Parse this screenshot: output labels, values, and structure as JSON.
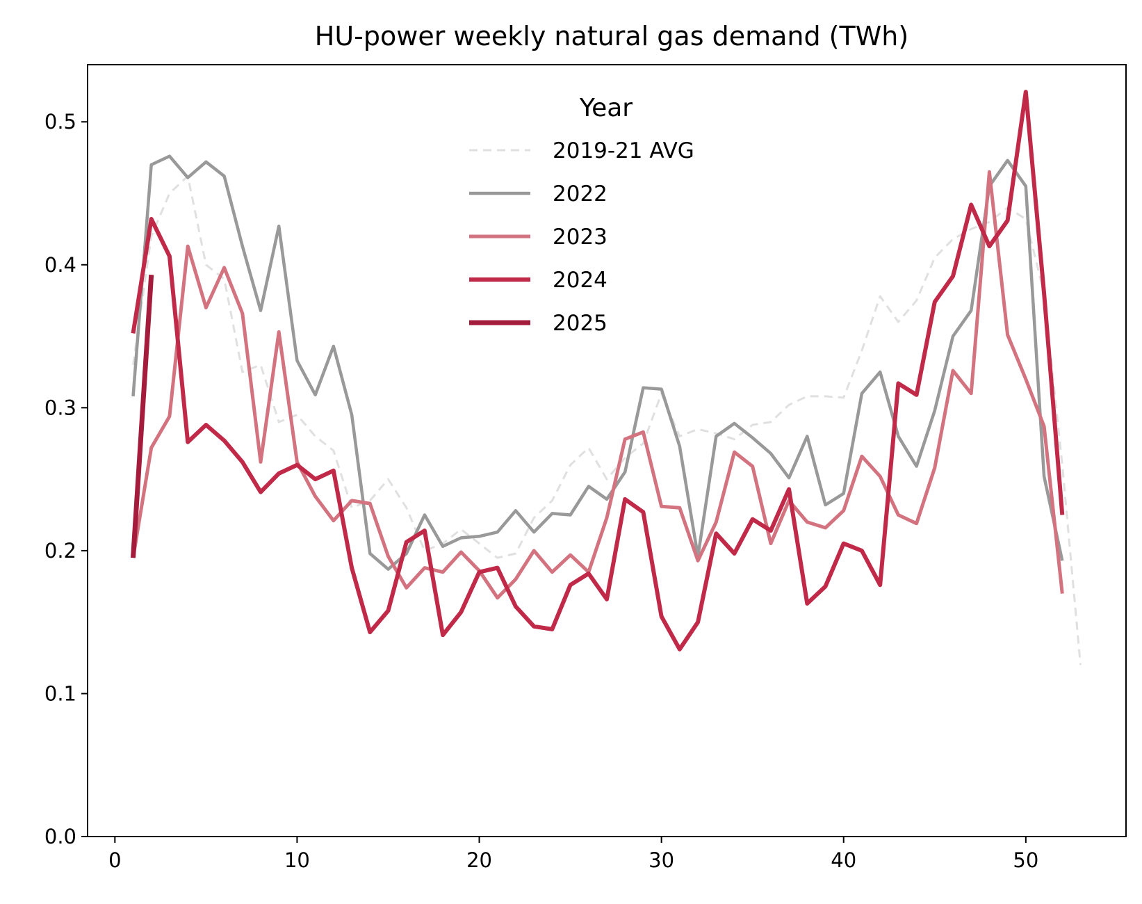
{
  "chart_data": {
    "type": "line",
    "title": "HU-power weekly natural gas demand (TWh)",
    "xlabel": "",
    "ylabel": "",
    "xlim": [
      -1.5,
      55.5
    ],
    "ylim": [
      0.0,
      0.54
    ],
    "x_ticks": [
      0,
      10,
      20,
      30,
      40,
      50
    ],
    "y_ticks": [
      0.0,
      0.1,
      0.2,
      0.3,
      0.4,
      0.5
    ],
    "x_tick_labels": [
      "0",
      "10",
      "20",
      "30",
      "40",
      "50"
    ],
    "y_tick_labels": [
      "0.0",
      "0.1",
      "0.2",
      "0.3",
      "0.4",
      "0.5"
    ],
    "grid": false,
    "legend": {
      "title": "Year",
      "position": "top-center"
    },
    "series": [
      {
        "name": "2019-21 AVG",
        "color": "#e0e0e0",
        "style": "dashed",
        "width": 3,
        "x": [
          1,
          2,
          3,
          4,
          5,
          6,
          7,
          8,
          9,
          10,
          11,
          12,
          13,
          14,
          15,
          16,
          17,
          18,
          19,
          20,
          21,
          22,
          23,
          24,
          25,
          26,
          27,
          28,
          29,
          30,
          31,
          32,
          33,
          34,
          35,
          36,
          37,
          38,
          39,
          40,
          41,
          42,
          43,
          44,
          45,
          46,
          47,
          48,
          49,
          50,
          51,
          52,
          53
        ],
        "values": [
          0.33,
          0.42,
          0.45,
          0.462,
          0.4,
          0.39,
          0.325,
          0.33,
          0.29,
          0.295,
          0.28,
          0.27,
          0.23,
          0.235,
          0.25,
          0.23,
          0.2,
          0.205,
          0.215,
          0.205,
          0.195,
          0.198,
          0.223,
          0.235,
          0.26,
          0.272,
          0.25,
          0.265,
          0.275,
          0.31,
          0.28,
          0.285,
          0.282,
          0.278,
          0.288,
          0.29,
          0.302,
          0.308,
          0.308,
          0.307,
          0.34,
          0.378,
          0.36,
          0.375,
          0.405,
          0.418,
          0.425,
          0.43,
          0.44,
          0.432,
          0.38,
          0.26,
          0.12
        ]
      },
      {
        "name": "2022",
        "color": "#999999",
        "style": "solid",
        "width": 4.5,
        "x": [
          1,
          2,
          3,
          4,
          5,
          6,
          7,
          8,
          9,
          10,
          11,
          12,
          13,
          14,
          15,
          16,
          17,
          18,
          19,
          20,
          21,
          22,
          23,
          24,
          25,
          26,
          27,
          28,
          29,
          30,
          31,
          32,
          33,
          34,
          35,
          36,
          37,
          38,
          39,
          40,
          41,
          42,
          43,
          44,
          45,
          46,
          47,
          48,
          49,
          50,
          51,
          52
        ],
        "values": [
          0.308,
          0.47,
          0.476,
          0.461,
          0.472,
          0.462,
          0.413,
          0.368,
          0.427,
          0.333,
          0.309,
          0.343,
          0.295,
          0.198,
          0.187,
          0.198,
          0.225,
          0.203,
          0.209,
          0.21,
          0.213,
          0.228,
          0.213,
          0.226,
          0.225,
          0.245,
          0.236,
          0.255,
          0.314,
          0.313,
          0.273,
          0.196,
          0.28,
          0.289,
          0.279,
          0.268,
          0.251,
          0.28,
          0.232,
          0.24,
          0.31,
          0.325,
          0.28,
          0.259,
          0.298,
          0.35,
          0.368,
          0.455,
          0.473,
          0.455,
          0.252,
          0.193
        ]
      },
      {
        "name": "2023",
        "color": "#d47380",
        "style": "solid",
        "width": 5,
        "x": [
          1,
          2,
          3,
          4,
          5,
          6,
          7,
          8,
          9,
          10,
          11,
          12,
          13,
          14,
          15,
          16,
          17,
          18,
          19,
          20,
          21,
          22,
          23,
          24,
          25,
          26,
          27,
          28,
          29,
          30,
          31,
          32,
          33,
          34,
          35,
          36,
          37,
          38,
          39,
          40,
          41,
          42,
          43,
          44,
          45,
          46,
          47,
          48,
          49,
          50,
          51,
          52
        ],
        "values": [
          0.195,
          0.272,
          0.294,
          0.413,
          0.37,
          0.398,
          0.366,
          0.262,
          0.353,
          0.262,
          0.238,
          0.221,
          0.235,
          0.233,
          0.196,
          0.174,
          0.188,
          0.185,
          0.199,
          0.186,
          0.167,
          0.18,
          0.2,
          0.185,
          0.197,
          0.185,
          0.223,
          0.278,
          0.283,
          0.231,
          0.23,
          0.193,
          0.22,
          0.269,
          0.259,
          0.205,
          0.235,
          0.22,
          0.216,
          0.228,
          0.266,
          0.252,
          0.225,
          0.219,
          0.258,
          0.326,
          0.31,
          0.465,
          0.351,
          0.32,
          0.287,
          0.17
        ]
      },
      {
        "name": "2024",
        "color": "#c02a48",
        "style": "solid",
        "width": 6,
        "x": [
          1,
          2,
          3,
          4,
          5,
          6,
          7,
          8,
          9,
          10,
          11,
          12,
          13,
          14,
          15,
          16,
          17,
          18,
          19,
          20,
          21,
          22,
          23,
          24,
          25,
          26,
          27,
          28,
          29,
          30,
          31,
          32,
          33,
          34,
          35,
          36,
          37,
          38,
          39,
          40,
          41,
          42,
          43,
          44,
          45,
          46,
          47,
          48,
          49,
          50,
          51,
          52
        ],
        "values": [
          0.352,
          0.432,
          0.406,
          0.276,
          0.288,
          0.277,
          0.262,
          0.241,
          0.254,
          0.26,
          0.25,
          0.256,
          0.188,
          0.143,
          0.158,
          0.206,
          0.214,
          0.141,
          0.157,
          0.185,
          0.188,
          0.161,
          0.147,
          0.145,
          0.176,
          0.184,
          0.166,
          0.236,
          0.227,
          0.154,
          0.131,
          0.15,
          0.212,
          0.198,
          0.222,
          0.214,
          0.243,
          0.163,
          0.175,
          0.205,
          0.2,
          0.176,
          0.317,
          0.309,
          0.374,
          0.392,
          0.442,
          0.413,
          0.431,
          0.521,
          0.38,
          0.225
        ]
      },
      {
        "name": "2025",
        "color": "#a51b3c",
        "style": "solid",
        "width": 7,
        "x": [
          1,
          2
        ],
        "values": [
          0.195,
          0.393
        ]
      }
    ]
  }
}
